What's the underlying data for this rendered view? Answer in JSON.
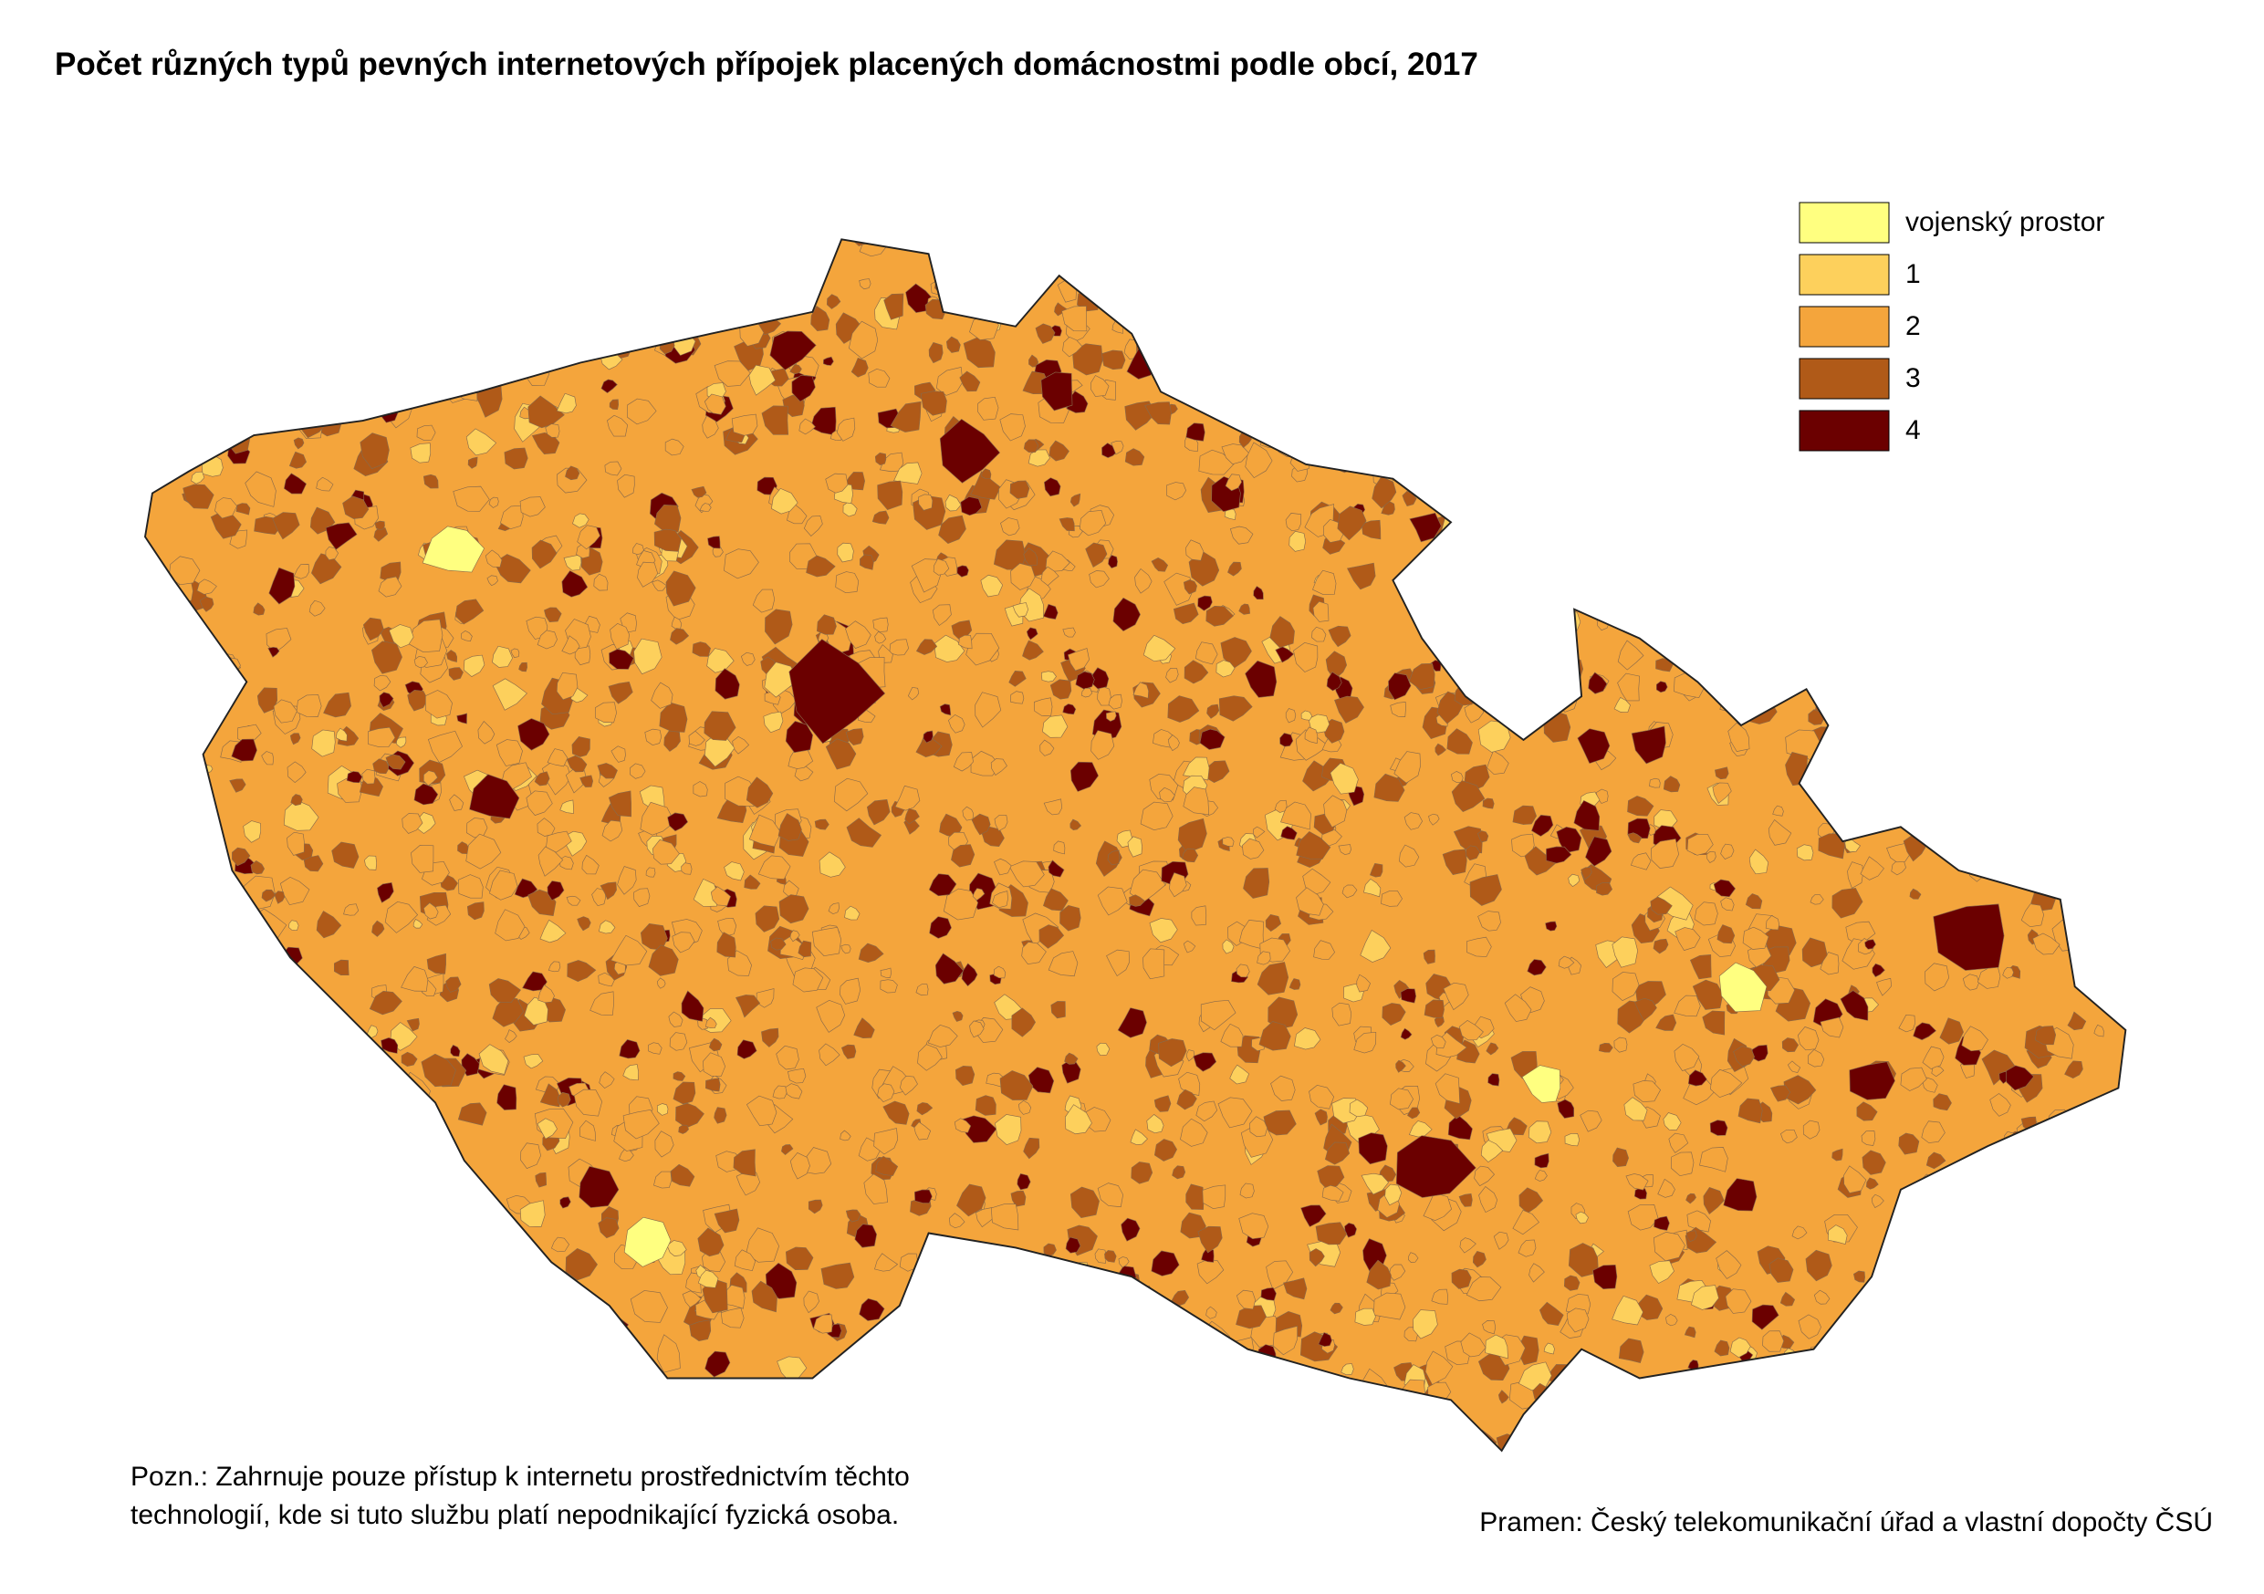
{
  "title": "Počet různých typů pevných internetových přípojek placených domácnostmi podle obcí, 2017",
  "legend": {
    "items": [
      {
        "label": "vojenský prostor",
        "color": "#ffff80"
      },
      {
        "label": "1",
        "color": "#fdd05c"
      },
      {
        "label": "2",
        "color": "#f4a53c"
      },
      {
        "label": "3",
        "color": "#b05a18"
      },
      {
        "label": "4",
        "color": "#6b0000"
      }
    ]
  },
  "note": {
    "lines": [
      "Pozn.: Zahrnuje pouze přístup k internetu prostřednictvím těchto",
      "technologií, kde si tuto službu platí nepodnikající fyzická osoba."
    ]
  },
  "source": "Pramen: Český telekomunikační úřad a vlastní dopočty ČSÚ"
}
